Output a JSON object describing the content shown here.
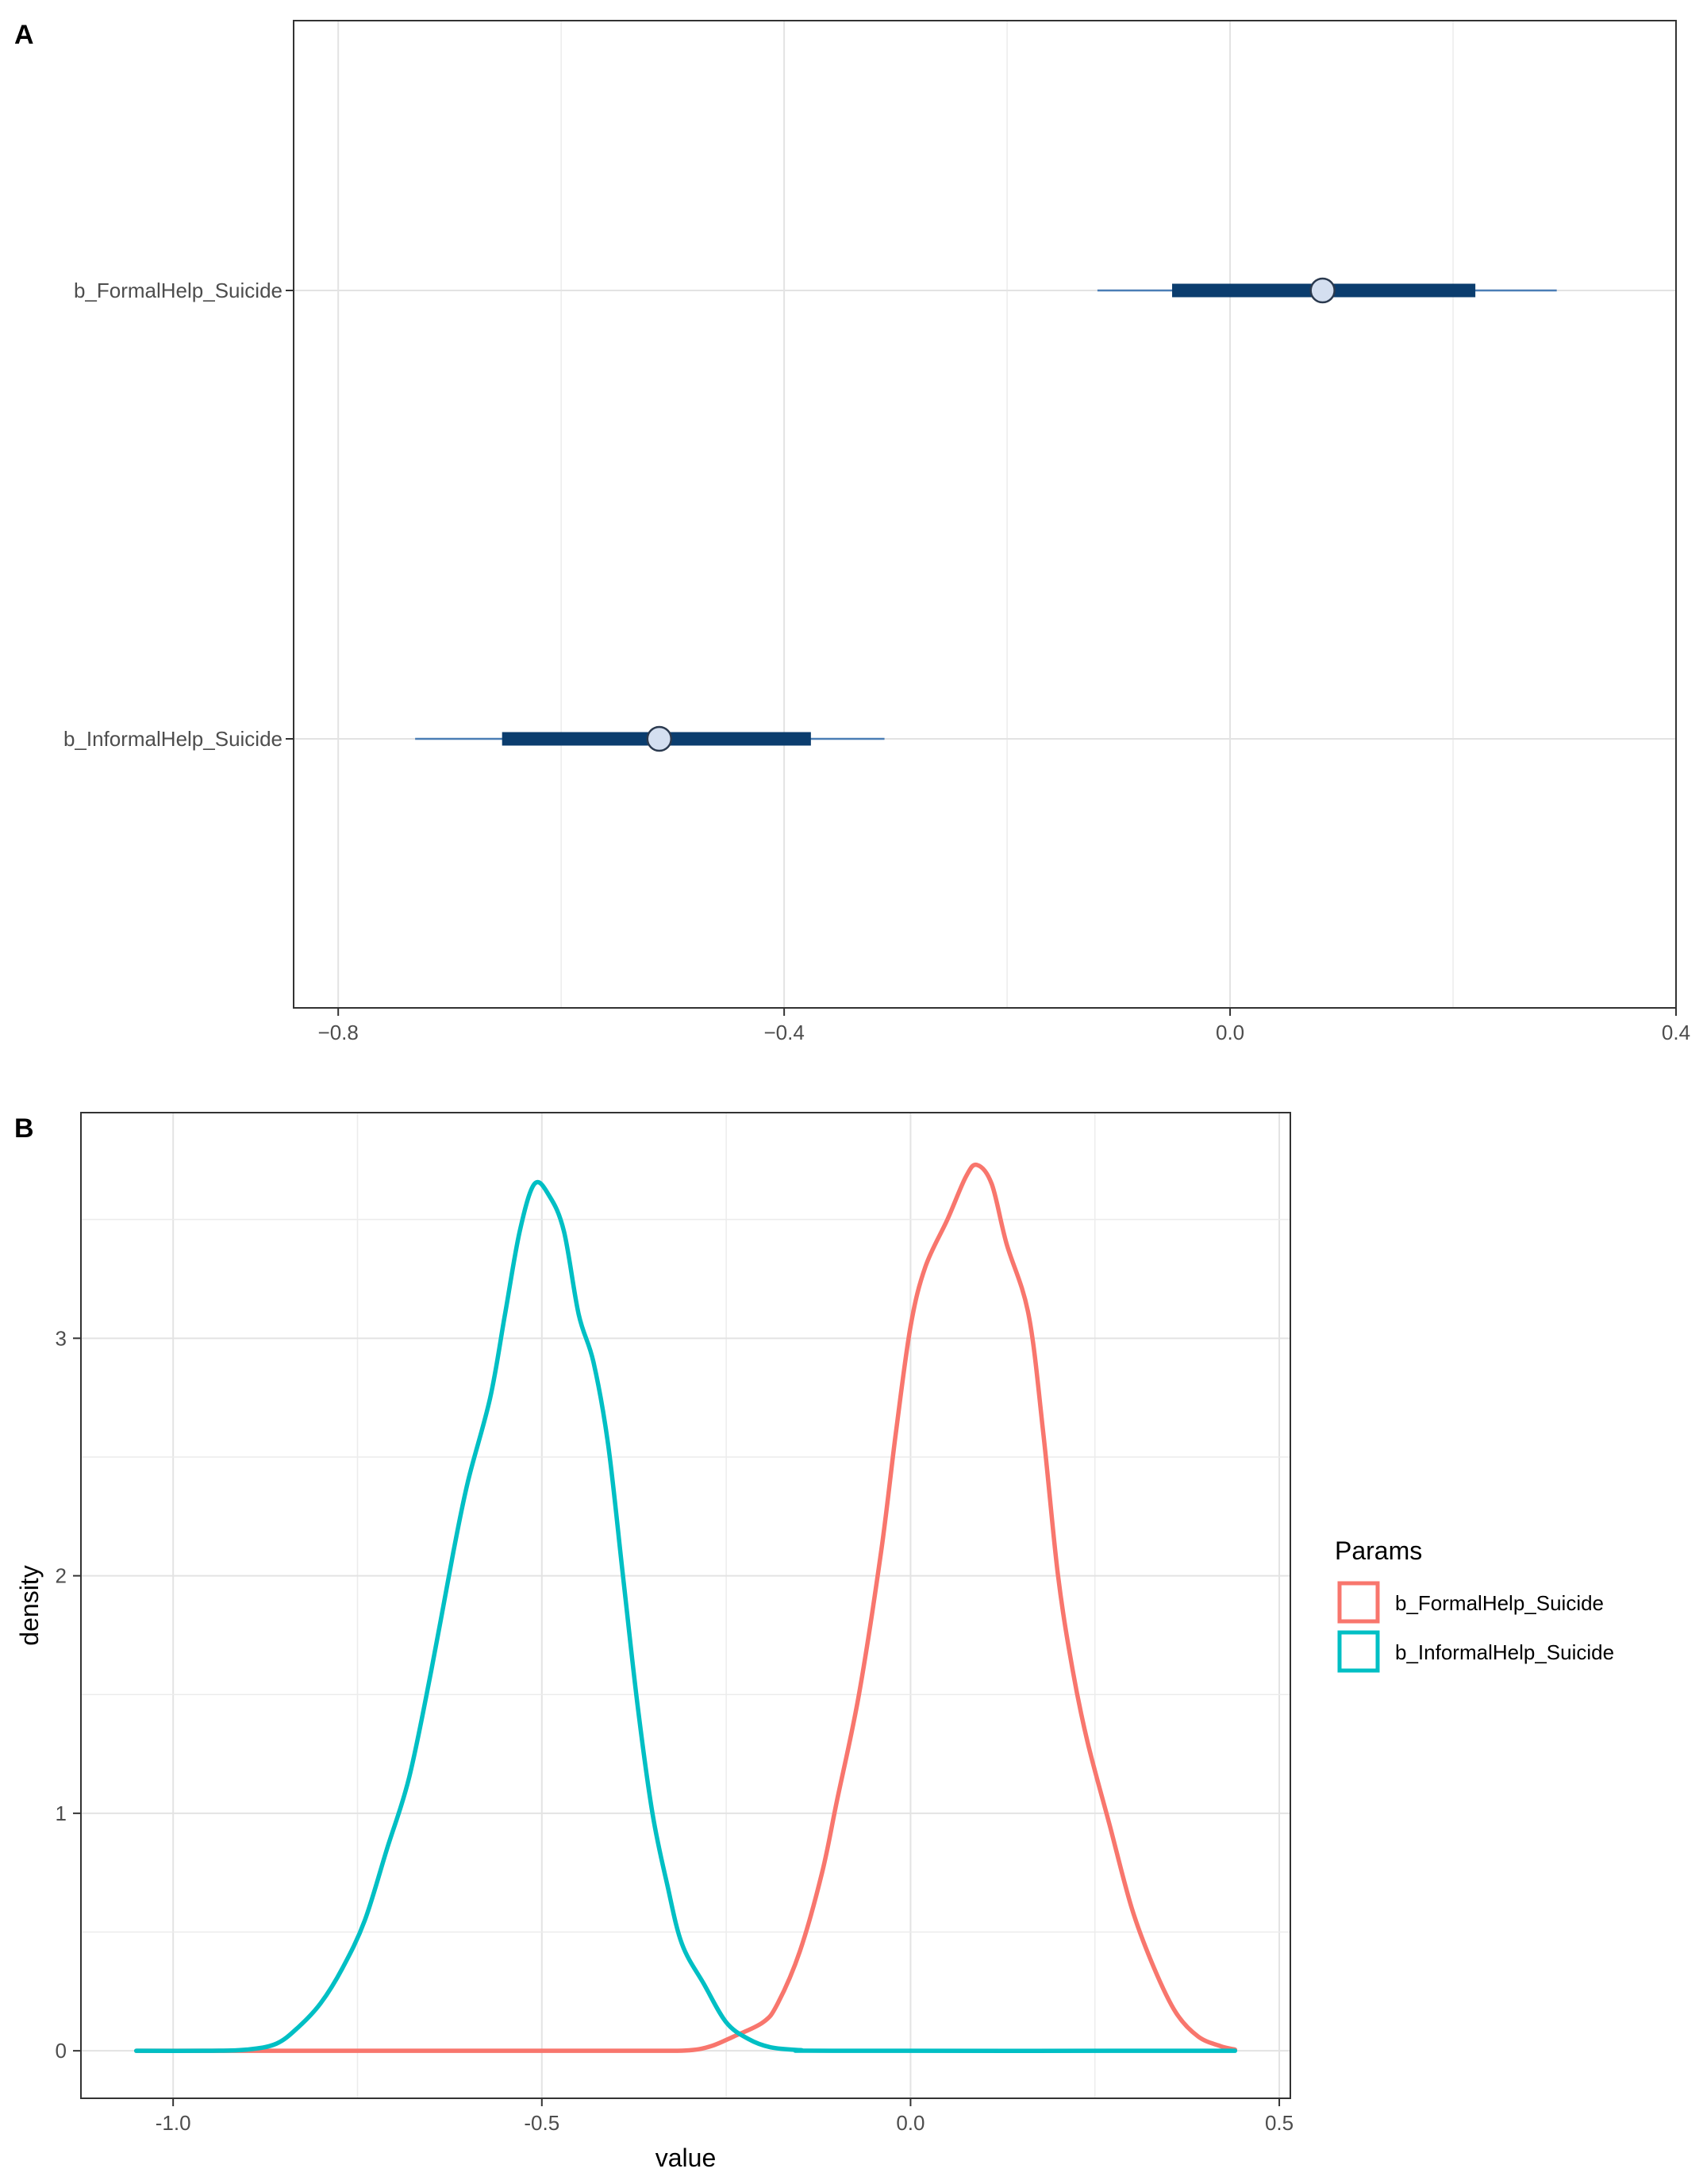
{
  "chart_data": [
    {
      "panel_label": "A",
      "type": "interval",
      "xlim": [
        -0.84,
        0.4
      ],
      "x_ticks": [
        -0.8,
        -0.4,
        0.0,
        0.4
      ],
      "x_tick_labels": [
        "−0.8",
        "−0.4",
        "0.0",
        "0.4"
      ],
      "grid": true,
      "rows": [
        {
          "label": "b_FormalHelp_Suicide",
          "estimate": 0.083,
          "inner": [
            -0.052,
            0.22
          ],
          "outer": [
            -0.119,
            0.293
          ]
        },
        {
          "label": "b_InformalHelp_Suicide",
          "estimate": -0.512,
          "inner": [
            -0.653,
            -0.376
          ],
          "outer": [
            -0.731,
            -0.31
          ]
        }
      ],
      "colors": {
        "inner_bar": "#0b3d6e",
        "outer_line": "#4a7db5",
        "point_fill": "#d4dff0",
        "point_stroke": "#2b3a4f"
      }
    },
    {
      "panel_label": "B",
      "type": "line",
      "xlabel": "value",
      "ylabel": "density",
      "xlim": [
        -1.125,
        0.515
      ],
      "ylim": [
        -0.2,
        3.95
      ],
      "x_ticks": [
        -1.0,
        -0.5,
        0.0,
        0.5
      ],
      "x_tick_labels": [
        "-1.0",
        "-0.5",
        "0.0",
        "0.5"
      ],
      "y_ticks": [
        0,
        1,
        2,
        3
      ],
      "y_tick_labels": [
        "0",
        "1",
        "2",
        "3"
      ],
      "grid": true,
      "legend": {
        "title": "Params",
        "placement": "right",
        "entries": [
          "b_FormalHelp_Suicide",
          "b_InformalHelp_Suicide"
        ]
      },
      "series": [
        {
          "name": "b_FormalHelp_Suicide",
          "color": "#f8766d",
          "points": [
            [
              -1.05,
              0
            ],
            [
              -0.5,
              0
            ],
            [
              -0.35,
              0
            ],
            [
              -0.3,
              0.002
            ],
            [
              -0.27,
              0.02
            ],
            [
              -0.24,
              0.06
            ],
            [
              -0.2,
              0.12
            ],
            [
              -0.18,
              0.2
            ],
            [
              -0.15,
              0.42
            ],
            [
              -0.12,
              0.75
            ],
            [
              -0.1,
              1.05
            ],
            [
              -0.07,
              1.5
            ],
            [
              -0.04,
              2.1
            ],
            [
              -0.02,
              2.6
            ],
            [
              0.0,
              3.05
            ],
            [
              0.02,
              3.3
            ],
            [
              0.05,
              3.5
            ],
            [
              0.075,
              3.68
            ],
            [
              0.09,
              3.73
            ],
            [
              0.11,
              3.65
            ],
            [
              0.13,
              3.4
            ],
            [
              0.16,
              3.1
            ],
            [
              0.18,
              2.6
            ],
            [
              0.2,
              2.0
            ],
            [
              0.22,
              1.6
            ],
            [
              0.24,
              1.3
            ],
            [
              0.27,
              0.95
            ],
            [
              0.3,
              0.6
            ],
            [
              0.33,
              0.35
            ],
            [
              0.36,
              0.16
            ],
            [
              0.39,
              0.06
            ],
            [
              0.42,
              0.02
            ],
            [
              0.44,
              0.005
            ]
          ]
        },
        {
          "name": "b_InformalHelp_Suicide",
          "color": "#00bfc4",
          "points": [
            [
              -1.05,
              0
            ],
            [
              -0.95,
              0
            ],
            [
              -0.9,
              0.005
            ],
            [
              -0.86,
              0.03
            ],
            [
              -0.83,
              0.1
            ],
            [
              -0.8,
              0.2
            ],
            [
              -0.77,
              0.35
            ],
            [
              -0.74,
              0.55
            ],
            [
              -0.71,
              0.85
            ],
            [
              -0.68,
              1.15
            ],
            [
              -0.65,
              1.6
            ],
            [
              -0.62,
              2.1
            ],
            [
              -0.6,
              2.4
            ],
            [
              -0.57,
              2.75
            ],
            [
              -0.55,
              3.1
            ],
            [
              -0.53,
              3.45
            ],
            [
              -0.51,
              3.65
            ],
            [
              -0.49,
              3.6
            ],
            [
              -0.47,
              3.45
            ],
            [
              -0.45,
              3.1
            ],
            [
              -0.43,
              2.9
            ],
            [
              -0.41,
              2.55
            ],
            [
              -0.39,
              2.0
            ],
            [
              -0.37,
              1.45
            ],
            [
              -0.35,
              1.0
            ],
            [
              -0.33,
              0.7
            ],
            [
              -0.31,
              0.45
            ],
            [
              -0.28,
              0.28
            ],
            [
              -0.25,
              0.12
            ],
            [
              -0.22,
              0.05
            ],
            [
              -0.19,
              0.015
            ],
            [
              -0.15,
              0.003
            ],
            [
              -0.1,
              0
            ],
            [
              0.44,
              0
            ]
          ]
        }
      ]
    }
  ]
}
